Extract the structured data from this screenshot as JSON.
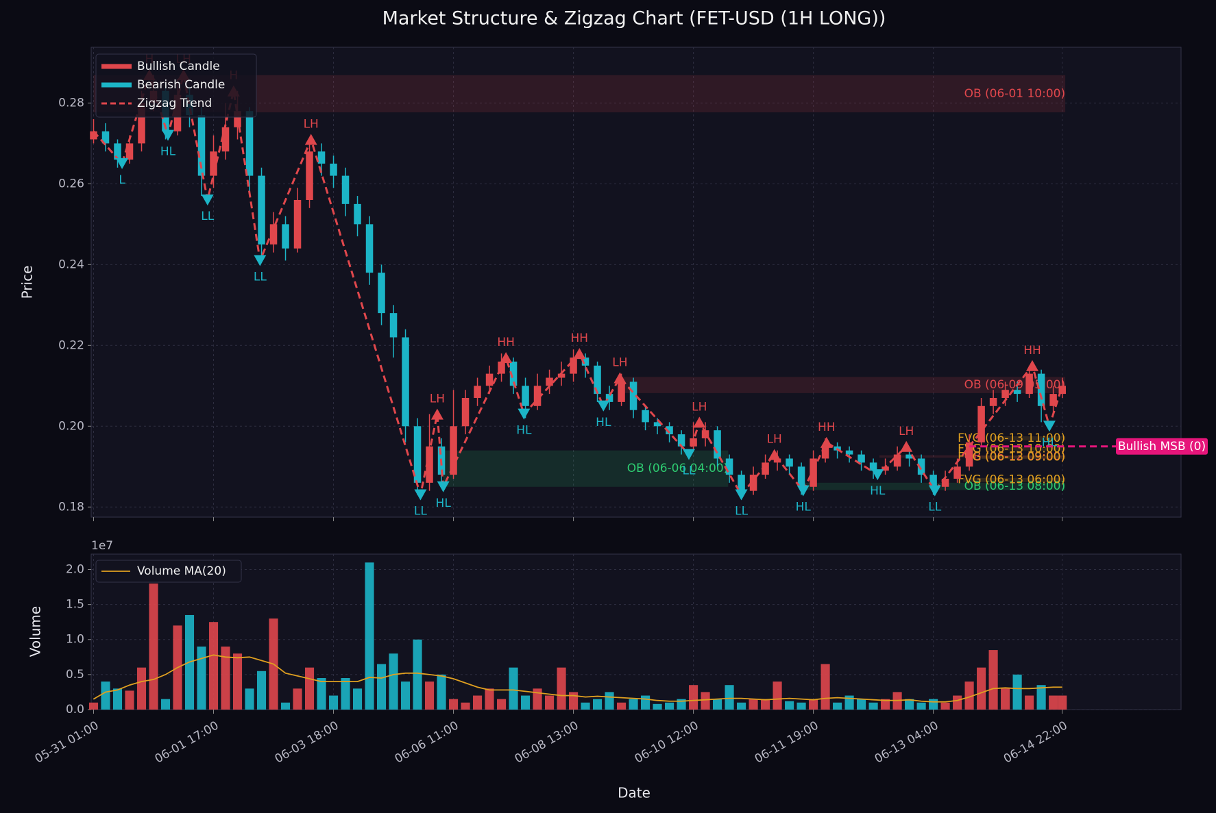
{
  "chart_data": [
    {
      "type": "candlestick",
      "title": "Market Structure & Zigzag Chart (FET-USD (1H LONG))",
      "y_label": "Price",
      "bullish": {
        "name": "Bullish Candle",
        "color": "#e0474c"
      },
      "bearish": {
        "name": "Bearish Candle",
        "color": "#1cb5c7"
      },
      "x": [
        0,
        4,
        8,
        12,
        16,
        20,
        24,
        28,
        32,
        36,
        40,
        44,
        48,
        52,
        56,
        60,
        64,
        68,
        72,
        76,
        80,
        84,
        88,
        92,
        96,
        100,
        104,
        108,
        112,
        116,
        120,
        124,
        128,
        132,
        136,
        140,
        144,
        148,
        152,
        156,
        160,
        164,
        168,
        172,
        176,
        180,
        184,
        188,
        192,
        196,
        200,
        204,
        208,
        212,
        216,
        220,
        224,
        228,
        232,
        236,
        240,
        244,
        248,
        252,
        256,
        260,
        264,
        268,
        272,
        276,
        280,
        284,
        288,
        292,
        296,
        300,
        304,
        308,
        312,
        316,
        320,
        323
      ],
      "open": [
        0.271,
        0.273,
        0.27,
        0.266,
        0.27,
        0.28,
        0.283,
        0.273,
        0.282,
        0.277,
        0.262,
        0.268,
        0.274,
        0.278,
        0.262,
        0.245,
        0.25,
        0.244,
        0.256,
        0.268,
        0.265,
        0.262,
        0.255,
        0.25,
        0.238,
        0.228,
        0.222,
        0.2,
        0.186,
        0.195,
        0.188,
        0.2,
        0.207,
        0.21,
        0.213,
        0.216,
        0.21,
        0.205,
        0.21,
        0.212,
        0.213,
        0.217,
        0.215,
        0.208,
        0.206,
        0.211,
        0.204,
        0.201,
        0.2,
        0.198,
        0.195,
        0.197,
        0.199,
        0.192,
        0.188,
        0.184,
        0.188,
        0.191,
        0.192,
        0.19,
        0.185,
        0.192,
        0.195,
        0.194,
        0.193,
        0.191,
        0.189,
        0.19,
        0.193,
        0.192,
        0.188,
        0.185,
        0.187,
        0.19,
        0.196,
        0.205,
        0.207,
        0.209,
        0.208,
        0.213,
        0.205,
        0.208
      ],
      "high": [
        0.276,
        0.275,
        0.271,
        0.272,
        0.283,
        0.287,
        0.285,
        0.286,
        0.284,
        0.279,
        0.272,
        0.28,
        0.283,
        0.279,
        0.264,
        0.253,
        0.252,
        0.259,
        0.271,
        0.27,
        0.267,
        0.264,
        0.257,
        0.252,
        0.24,
        0.23,
        0.224,
        0.202,
        0.203,
        0.197,
        0.209,
        0.209,
        0.212,
        0.215,
        0.218,
        0.217,
        0.212,
        0.213,
        0.214,
        0.216,
        0.219,
        0.218,
        0.216,
        0.21,
        0.213,
        0.212,
        0.205,
        0.202,
        0.201,
        0.199,
        0.201,
        0.201,
        0.2,
        0.193,
        0.189,
        0.19,
        0.193,
        0.194,
        0.193,
        0.191,
        0.194,
        0.197,
        0.196,
        0.195,
        0.194,
        0.192,
        0.192,
        0.195,
        0.194,
        0.193,
        0.189,
        0.189,
        0.192,
        0.198,
        0.207,
        0.209,
        0.211,
        0.211,
        0.215,
        0.214,
        0.21,
        0.212
      ],
      "low": [
        0.27,
        0.268,
        0.264,
        0.265,
        0.268,
        0.278,
        0.271,
        0.272,
        0.274,
        0.257,
        0.259,
        0.266,
        0.271,
        0.258,
        0.241,
        0.243,
        0.241,
        0.243,
        0.254,
        0.262,
        0.259,
        0.252,
        0.247,
        0.235,
        0.225,
        0.217,
        0.196,
        0.183,
        0.184,
        0.185,
        0.187,
        0.198,
        0.205,
        0.208,
        0.211,
        0.208,
        0.202,
        0.204,
        0.208,
        0.21,
        0.211,
        0.212,
        0.206,
        0.204,
        0.205,
        0.202,
        0.199,
        0.198,
        0.196,
        0.193,
        0.194,
        0.195,
        0.19,
        0.186,
        0.182,
        0.183,
        0.187,
        0.189,
        0.188,
        0.183,
        0.184,
        0.191,
        0.192,
        0.191,
        0.189,
        0.187,
        0.188,
        0.189,
        0.19,
        0.186,
        0.183,
        0.184,
        0.186,
        0.189,
        0.195,
        0.203,
        0.205,
        0.206,
        0.207,
        0.201,
        0.203,
        0.207
      ],
      "close": [
        0.273,
        0.27,
        0.266,
        0.27,
        0.28,
        0.283,
        0.273,
        0.282,
        0.277,
        0.262,
        0.268,
        0.274,
        0.278,
        0.262,
        0.245,
        0.25,
        0.244,
        0.256,
        0.268,
        0.265,
        0.262,
        0.255,
        0.25,
        0.238,
        0.228,
        0.222,
        0.2,
        0.186,
        0.195,
        0.188,
        0.2,
        0.207,
        0.21,
        0.213,
        0.216,
        0.21,
        0.205,
        0.21,
        0.212,
        0.213,
        0.217,
        0.215,
        0.208,
        0.206,
        0.211,
        0.204,
        0.201,
        0.2,
        0.198,
        0.195,
        0.197,
        0.199,
        0.192,
        0.188,
        0.184,
        0.188,
        0.191,
        0.192,
        0.19,
        0.185,
        0.192,
        0.195,
        0.194,
        0.193,
        0.191,
        0.189,
        0.19,
        0.193,
        0.192,
        0.188,
        0.185,
        0.187,
        0.19,
        0.196,
        0.205,
        0.207,
        0.209,
        0.208,
        0.213,
        0.205,
        0.208,
        0.21
      ],
      "zigzag": {
        "name": "Zigzag Trend",
        "color": "#e0474c",
        "x": [
          0,
          9.5,
          18.6,
          24.8,
          30,
          38,
          46.7,
          55.5,
          72.5,
          109,
          114.6,
          116.6,
          137.5,
          143.5,
          162,
          170,
          175.5,
          198.5,
          202,
          216,
          227,
          236.6,
          244.4,
          261.4,
          271,
          280.5,
          313,
          318.7,
          323
        ],
        "values": [
          0.273,
          0.265,
          0.287,
          0.272,
          0.287,
          0.256,
          0.283,
          0.241,
          0.271,
          0.183,
          0.203,
          0.185,
          0.217,
          0.203,
          0.218,
          0.205,
          0.212,
          0.193,
          0.201,
          0.183,
          0.193,
          0.184,
          0.196,
          0.188,
          0.195,
          0.184,
          0.215,
          0.2,
          0.21
        ],
        "labels": [
          null,
          "L",
          "H",
          "HL",
          "LH",
          "LL",
          "H",
          "LL",
          "LH",
          "LL",
          "LH",
          "HL",
          "HH",
          "HL",
          "HH",
          "HL",
          "LH",
          "LL",
          "LH",
          "LL",
          "LH",
          "HL",
          "HH",
          "HL",
          "LH",
          "LL",
          "HH",
          "HL",
          null
        ]
      },
      "zones": [
        {
          "label": "OB (06-01 10:00)",
          "color": "#e0474c",
          "x0": 0,
          "x1": 324,
          "y0": 0.2777,
          "y1": 0.2869
        },
        {
          "label": "OB (06-09 05:00)",
          "color": "#e0474c",
          "x0": 175.5,
          "x1": 324,
          "y0": 0.2082,
          "y1": 0.2122
        },
        {
          "label": "OB (06-06 04:00)",
          "color": "#2ecc71",
          "x0": 116.6,
          "x1": 211.6,
          "y0": 0.185,
          "y1": 0.194
        },
        {
          "label": "OB (06-12 09:00)",
          "color": "#e0474c",
          "x0": 262,
          "x1": 324,
          "y0": 0.1922,
          "y1": 0.1928
        },
        {
          "label": "OB (06-13 08:00)",
          "color": "#2ecc71",
          "x0": 237,
          "x1": 324,
          "y0": 0.1842,
          "y1": 0.186
        },
        {
          "label": "FVG (06-13 11:00)",
          "color": "#e0a020",
          "x0": 300,
          "x1": 324,
          "y0": 0.1965,
          "y1": 0.1975
        },
        {
          "label": "FVG (06-13 10:00)",
          "color": "#e0a020",
          "x0": 298,
          "x1": 324,
          "y0": 0.194,
          "y1": 0.1948
        },
        {
          "label": "FVG (06-13 09:00)",
          "color": "#e0a020",
          "x0": 296,
          "x1": 324,
          "y0": 0.1919,
          "y1": 0.1927
        },
        {
          "label": "FVG (06-13 06:00)",
          "color": "#e0a020",
          "x0": 290,
          "x1": 324,
          "y0": 0.1862,
          "y1": 0.1872
        }
      ],
      "msb": {
        "label": "Bullish MSB (0)",
        "value": 0.195,
        "x": 292,
        "color": "#e6157a"
      },
      "xlim": [
        -0.8,
        362.6
      ],
      "ylim": [
        0.1775,
        0.2938
      ],
      "yticks": [
        0.18,
        {
          "value": 0.2,
          "label": "0.20"
        },
        0.22,
        0.24,
        0.26,
        0.28
      ],
      "grid": true
    },
    {
      "type": "bar",
      "y_label": "Volume",
      "x_label": "Date",
      "offset_label": "1e7",
      "x": [
        0,
        4,
        8,
        12,
        16,
        20,
        24,
        28,
        32,
        36,
        40,
        44,
        48,
        52,
        56,
        60,
        64,
        68,
        72,
        76,
        80,
        84,
        88,
        92,
        96,
        100,
        104,
        108,
        112,
        116,
        120,
        124,
        128,
        132,
        136,
        140,
        144,
        148,
        152,
        156,
        160,
        164,
        168,
        172,
        176,
        180,
        184,
        188,
        192,
        196,
        200,
        204,
        208,
        212,
        216,
        220,
        224,
        228,
        232,
        236,
        240,
        244,
        248,
        252,
        256,
        260,
        264,
        268,
        272,
        276,
        280,
        284,
        288,
        292,
        296,
        300,
        304,
        308,
        312,
        316,
        320,
        323
      ],
      "values": [
        1000000,
        4000000,
        3000000,
        2700000,
        6000000,
        18000000,
        1500000,
        12000000,
        13500000,
        9000000,
        12500000,
        9000000,
        8000000,
        3000000,
        5500000,
        13000000,
        1000000,
        3000000,
        6000000,
        4500000,
        2000000,
        4500000,
        3000000,
        21000000,
        6500000,
        8000000,
        4000000,
        10000000,
        4000000,
        5000000,
        1500000,
        1000000,
        2000000,
        3000000,
        1500000,
        6000000,
        2000000,
        3000000,
        2000000,
        6000000,
        2500000,
        1000000,
        1500000,
        2500000,
        1000000,
        1500000,
        2000000,
        800000,
        1000000,
        1500000,
        3500000,
        2500000,
        1500000,
        3500000,
        1000000,
        1500000,
        1500000,
        4000000,
        1200000,
        1000000,
        1500000,
        6500000,
        1000000,
        2000000,
        1500000,
        1000000,
        1500000,
        2500000,
        1500000,
        1000000,
        1500000,
        1000000,
        2000000,
        4000000,
        6000000,
        8500000,
        3000000,
        5000000,
        2000000,
        3500000,
        2000000,
        2000000
      ],
      "series": [
        {
          "name": "Volume MA(20)",
          "color": "#e0a020",
          "values": [
            1500000,
            2500000,
            2800000,
            3500000,
            4000000,
            4300000,
            5000000,
            6000000,
            6800000,
            7300000,
            7800000,
            7500000,
            7400000,
            7500000,
            7000000,
            6500000,
            5200000,
            4800000,
            4400000,
            4000000,
            4000000,
            4000000,
            4000000,
            4600000,
            4500000,
            5000000,
            5200000,
            5200000,
            5000000,
            4800000,
            4400000,
            3800000,
            3200000,
            2800000,
            2800000,
            2800000,
            2600000,
            2400000,
            2200000,
            2000000,
            2000000,
            1800000,
            1900000,
            1800000,
            1700000,
            1600000,
            1500000,
            1300000,
            1200000,
            1200000,
            1300000,
            1400000,
            1500000,
            1600000,
            1600000,
            1500000,
            1400000,
            1500000,
            1600000,
            1500000,
            1400000,
            1600000,
            1700000,
            1600000,
            1500000,
            1400000,
            1300000,
            1300000,
            1400000,
            1200000,
            1100000,
            1100000,
            1300000,
            1800000,
            2400000,
            3000000,
            3100000,
            3000000,
            3000000,
            3100000,
            3200000,
            3200000
          ]
        }
      ],
      "xlim": [
        -0.8,
        362.6
      ],
      "ylim": [
        0,
        22200000
      ],
      "xticks": [
        {
          "value": 0,
          "label": "05-31 01:00"
        },
        {
          "value": 40,
          "label": "06-01 17:00"
        },
        {
          "value": 80,
          "label": "06-03 18:00"
        },
        {
          "value": 120,
          "label": "06-06 11:00"
        },
        {
          "value": 160,
          "label": "06-08 13:00"
        },
        {
          "value": 200,
          "label": "06-10 12:00"
        },
        {
          "value": 240,
          "label": "06-11 19:00"
        },
        {
          "value": 280,
          "label": "06-13 04:00"
        },
        {
          "value": 323,
          "label": "06-14 22:00"
        }
      ],
      "yticks": [
        {
          "value": 0,
          "label": "0.0"
        },
        {
          "value": 5000000,
          "label": "0.5"
        },
        {
          "value": 10000000,
          "label": "1.0"
        },
        {
          "value": 15000000,
          "label": "1.5"
        },
        {
          "value": 20000000,
          "label": "2.0"
        }
      ],
      "grid": true
    }
  ]
}
